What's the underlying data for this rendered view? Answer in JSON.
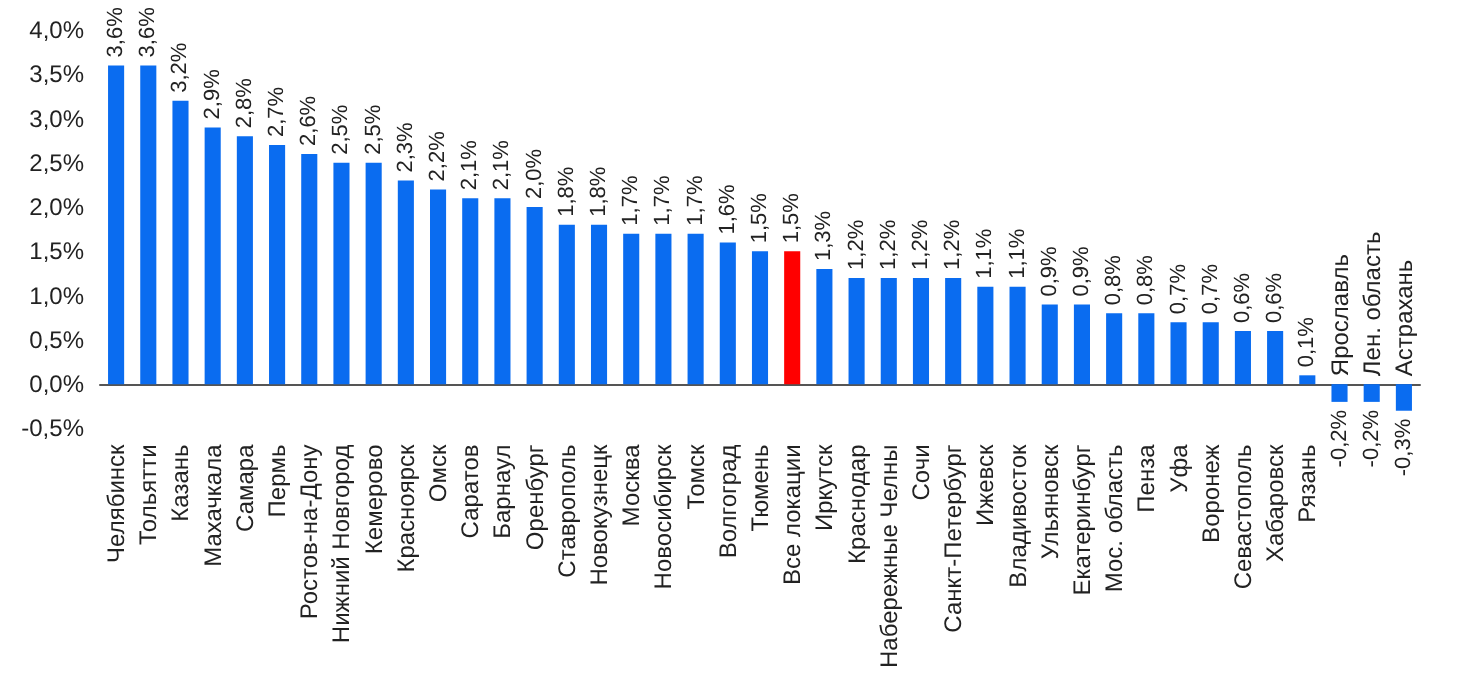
{
  "chart_data": {
    "type": "bar",
    "categories": [
      "Челябинск",
      "Тольятти",
      "Казань",
      "Махачкала",
      "Самара",
      "Пермь",
      "Ростов-на-Дону",
      "Нижний Новгород",
      "Кемерово",
      "Красноярск",
      "Омск",
      "Саратов",
      "Барнаул",
      "Оренбург",
      "Ставрополь",
      "Новокузнецк",
      "Москва",
      "Новосибирск",
      "Томск",
      "Волгоград",
      "Тюмень",
      "Все локации",
      "Иркутск",
      "Краснодар",
      "Набережные Челны",
      "Сочи",
      "Санкт-Петербург",
      "Ижевск",
      "Владивосток",
      "Ульяновск",
      "Екатеринбург",
      "Мос. область",
      "Пенза",
      "Уфа",
      "Воронеж",
      "Севастополь",
      "Хабаровск",
      "Рязань",
      "Ярославль",
      "Лен. область",
      "Астрахань"
    ],
    "values": [
      3.6,
      3.6,
      3.2,
      2.9,
      2.8,
      2.7,
      2.6,
      2.5,
      2.5,
      2.3,
      2.2,
      2.1,
      2.1,
      2.0,
      1.8,
      1.8,
      1.7,
      1.7,
      1.7,
      1.6,
      1.5,
      1.5,
      1.3,
      1.2,
      1.2,
      1.2,
      1.2,
      1.1,
      1.1,
      0.9,
      0.9,
      0.8,
      0.8,
      0.7,
      0.7,
      0.6,
      0.6,
      0.1,
      -0.2,
      -0.2,
      -0.3
    ],
    "value_labels": [
      "3,6%",
      "3,6%",
      "3,2%",
      "2,9%",
      "2,8%",
      "2,7%",
      "2,6%",
      "2,5%",
      "2,5%",
      "2,3%",
      "2,2%",
      "2,1%",
      "2,1%",
      "2,0%",
      "1,8%",
      "1,8%",
      "1,7%",
      "1,7%",
      "1,7%",
      "1,6%",
      "1,5%",
      "1,5%",
      "1,3%",
      "1,2%",
      "1,2%",
      "1,2%",
      "1,2%",
      "1,1%",
      "1,1%",
      "0,9%",
      "0,9%",
      "0,8%",
      "0,8%",
      "0,7%",
      "0,7%",
      "0,6%",
      "0,6%",
      "0,1%",
      "-0,2%",
      "-0,2%",
      "-0,3%"
    ],
    "colors": [
      "#0a6cf0",
      "#0a6cf0",
      "#0a6cf0",
      "#0a6cf0",
      "#0a6cf0",
      "#0a6cf0",
      "#0a6cf0",
      "#0a6cf0",
      "#0a6cf0",
      "#0a6cf0",
      "#0a6cf0",
      "#0a6cf0",
      "#0a6cf0",
      "#0a6cf0",
      "#0a6cf0",
      "#0a6cf0",
      "#0a6cf0",
      "#0a6cf0",
      "#0a6cf0",
      "#0a6cf0",
      "#0a6cf0",
      "#ff0000",
      "#0a6cf0",
      "#0a6cf0",
      "#0a6cf0",
      "#0a6cf0",
      "#0a6cf0",
      "#0a6cf0",
      "#0a6cf0",
      "#0a6cf0",
      "#0a6cf0",
      "#0a6cf0",
      "#0a6cf0",
      "#0a6cf0",
      "#0a6cf0",
      "#0a6cf0",
      "#0a6cf0",
      "#0a6cf0",
      "#0a6cf0",
      "#0a6cf0",
      "#0a6cf0"
    ],
    "ylim": [
      -0.5,
      4.0
    ],
    "yticks": [
      {
        "value": -0.5,
        "label": "-0,5%"
      },
      {
        "value": 0,
        "label": "0,0%"
      },
      {
        "value": 0.5,
        "label": "0,5%"
      },
      {
        "value": 1.0,
        "label": "1,0%"
      },
      {
        "value": 1.5,
        "label": "1,5%"
      },
      {
        "value": 2.0,
        "label": "2,0%"
      },
      {
        "value": 2.5,
        "label": "2,5%"
      },
      {
        "value": 3.0,
        "label": "3,0%"
      },
      {
        "value": 3.5,
        "label": "3,5%"
      },
      {
        "value": 4.0,
        "label": "4,0%"
      }
    ],
    "grid": false
  }
}
